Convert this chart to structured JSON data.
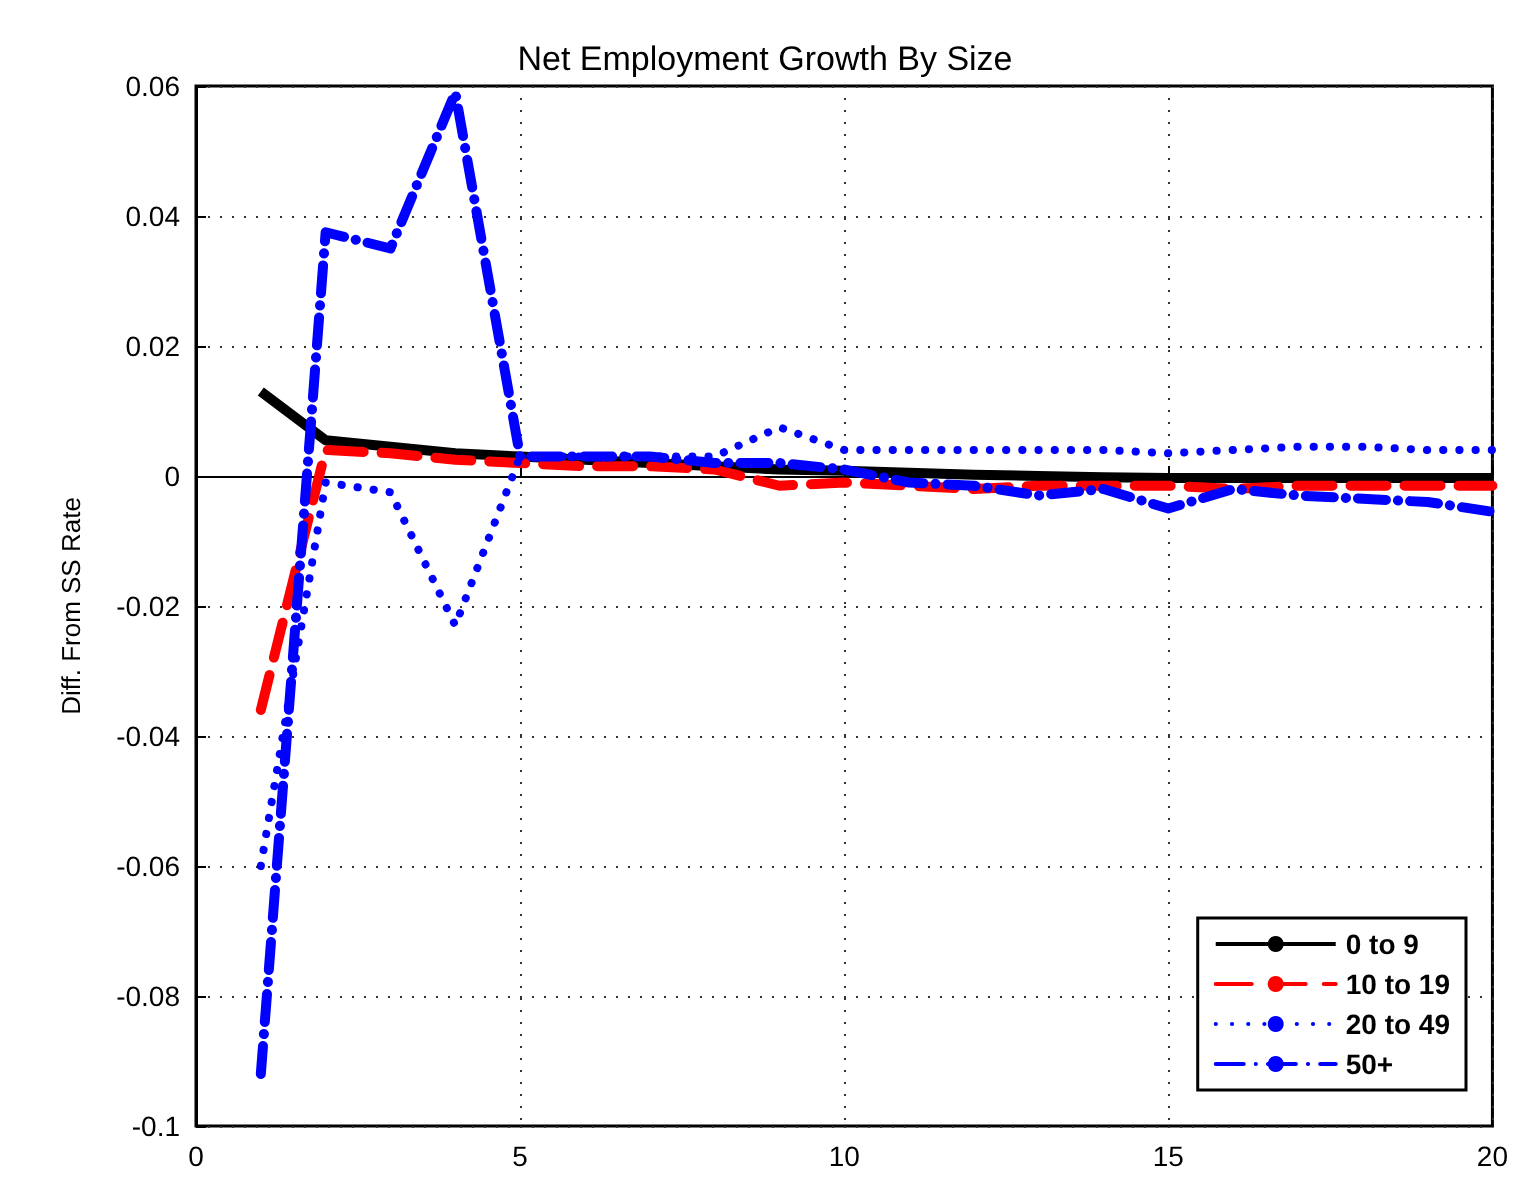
{
  "chart_data": {
    "type": "line",
    "title": "Net Employment Growth By Size",
    "ylabel": "Diff. From SS Rate",
    "x": [
      1,
      2,
      3,
      4,
      5,
      6,
      7,
      8,
      9,
      10,
      11,
      12,
      13,
      14,
      15,
      16,
      17,
      18,
      19,
      20
    ],
    "xlim": [
      0,
      20
    ],
    "xticks": [
      0,
      5,
      10,
      15,
      20
    ],
    "ylim": [
      -0.1,
      0.06
    ],
    "yticks": [
      -0.1,
      -0.08,
      -0.06,
      -0.04,
      -0.02,
      0,
      0.02,
      0.04,
      0.06
    ],
    "grid": true,
    "legend": "bottom right",
    "marker": "none",
    "series": [
      {
        "name": "0 to 9",
        "color": "#000000",
        "line_style": "solid",
        "values": [
          0.013,
          0.0055,
          0.0045,
          0.0035,
          0.003,
          0.0025,
          0.002,
          0.0015,
          0.001,
          0.0008,
          0.0005,
          0.0002,
          0,
          -0.0002,
          -0.0003,
          -0.0003,
          -0.0003,
          -0.0003,
          -0.0003,
          -0.0003
        ]
      },
      {
        "name": "10 to 19",
        "color": "#ff0000",
        "line_style": "dashed",
        "values": [
          -0.036,
          0.004,
          0.0035,
          0.0025,
          0.002,
          0.0015,
          0.0015,
          0.001,
          -0.0015,
          -0.001,
          -0.0015,
          -0.002,
          -0.0015,
          -0.0015,
          -0.0015,
          -0.002,
          -0.0015,
          -0.0015,
          -0.0015,
          -0.0015
        ]
      },
      {
        "name": "20 to 49",
        "color": "#0000ff",
        "line_style": "dotted",
        "values": [
          -0.06,
          -0.001,
          -0.0025,
          -0.023,
          0.003,
          0.003,
          0.003,
          0.003,
          0.0075,
          0.004,
          0.004,
          0.004,
          0.004,
          0.004,
          0.0035,
          0.004,
          0.0045,
          0.0045,
          0.004,
          0.004
        ]
      },
      {
        "name": "50+",
        "color": "#0000ff",
        "line_style": "dashdot",
        "values": [
          -0.092,
          0.0375,
          0.035,
          0.059,
          0.003,
          0.003,
          0.003,
          0.002,
          0.002,
          0.001,
          -0.001,
          -0.0015,
          -0.003,
          -0.002,
          -0.005,
          -0.002,
          -0.003,
          -0.0035,
          -0.004,
          -0.0055
        ]
      }
    ]
  }
}
